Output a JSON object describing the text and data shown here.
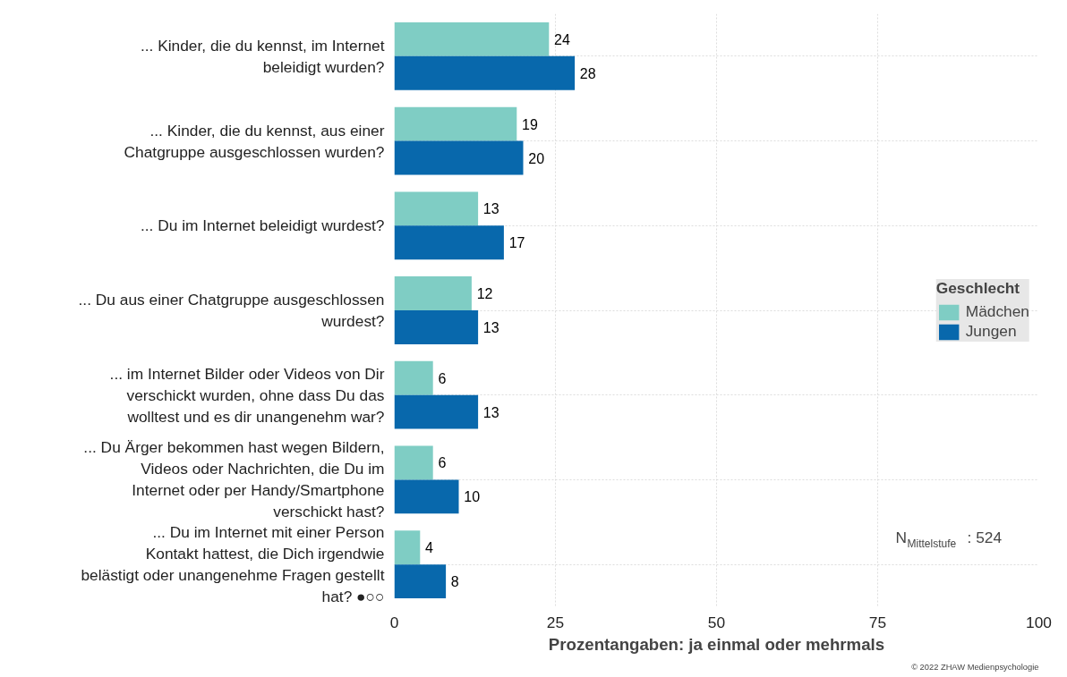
{
  "chart_data": {
    "type": "bar",
    "orientation": "horizontal",
    "xlabel": "Prozentangaben: ja einmal oder mehrmals",
    "legend_title": "Geschlecht",
    "legend": "right",
    "grid": true,
    "data_labels": true,
    "categories": [
      "... Kinder, die du kennst, im Internet beleidigt wurden?",
      "... Kinder, die du kennst, aus einer Chatgruppe ausgeschlossen wurden?",
      "... Du im Internet beleidigt wurdest?",
      "... Du aus einer Chatgruppe ausgeschlossen wurdest?",
      "... im Internet Bilder oder Videos von Dir verschickt wurden, ohne dass Du das wolltest und es dir unangenehm war?",
      "... Du Ärger bekommen hast wegen Bildern, Videos oder Nachrichten, die Du im Internet oder per Handy/Smartphone verschickt hast?",
      "... Du im Internet mit einer Person Kontakt hattest, die Dich irgendwie belästigt oder unangenehme Fragen gestellt hat? ●○○"
    ],
    "series": [
      {
        "name": "Mädchen",
        "color": "#7fcdc4",
        "values": [
          24,
          19,
          13,
          12,
          6,
          6,
          4
        ]
      },
      {
        "name": "Jungen",
        "color": "#0868ac",
        "values": [
          28,
          20,
          17,
          13,
          13,
          10,
          8
        ]
      }
    ],
    "xlim": [
      0,
      100
    ],
    "xticks": [
      0,
      25,
      50,
      75,
      100
    ],
    "annotations": [
      "N$_{Mittelstufe}$ : 524",
      "© 2022 ZHAW Medienpsychologie"
    ]
  }
}
